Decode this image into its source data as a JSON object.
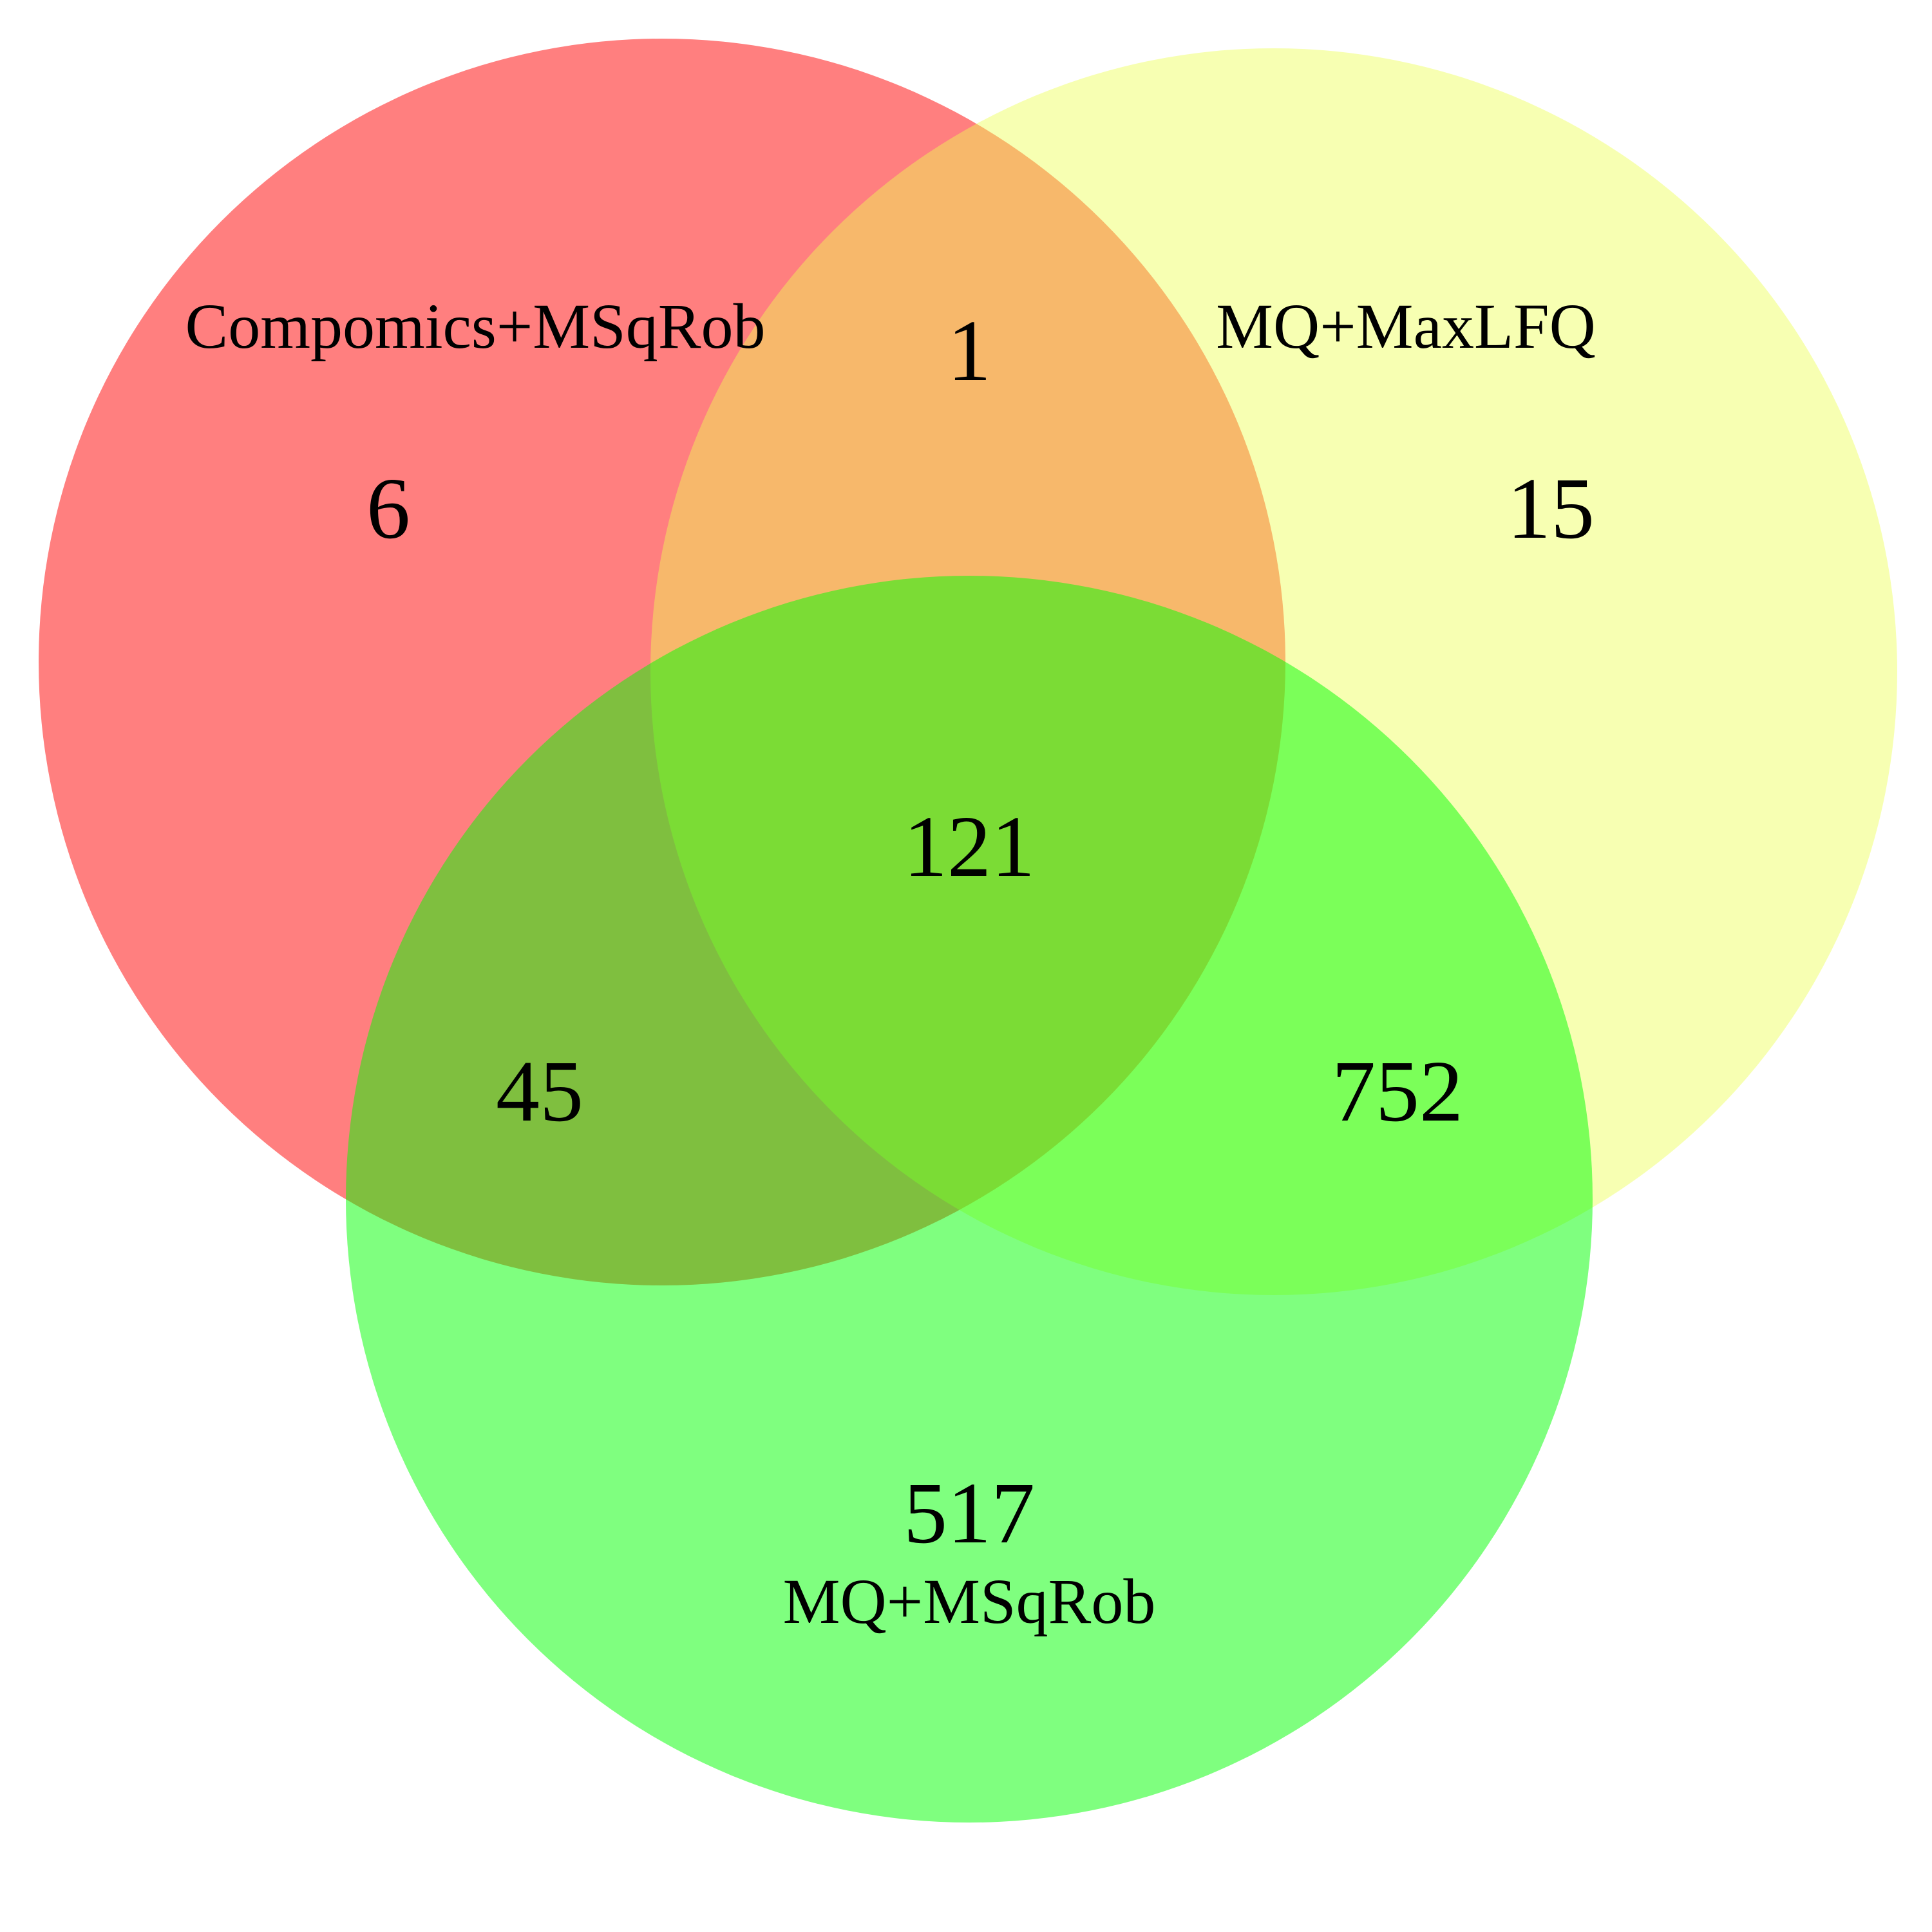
{
  "sets": [
    {
      "key": "A",
      "label": "Compomics+MSqRob",
      "color": "#ff0000"
    },
    {
      "key": "B",
      "label": "MQ+MaxLFQ",
      "color": "#eeff55"
    },
    {
      "key": "C",
      "label": "MQ+MSqRob",
      "color": "#00ff00"
    }
  ],
  "regions": {
    "A_only": "6",
    "B_only": "15",
    "C_only": "517",
    "A_B": "1",
    "A_C": "45",
    "B_C": "752",
    "A_B_C": "121"
  }
}
